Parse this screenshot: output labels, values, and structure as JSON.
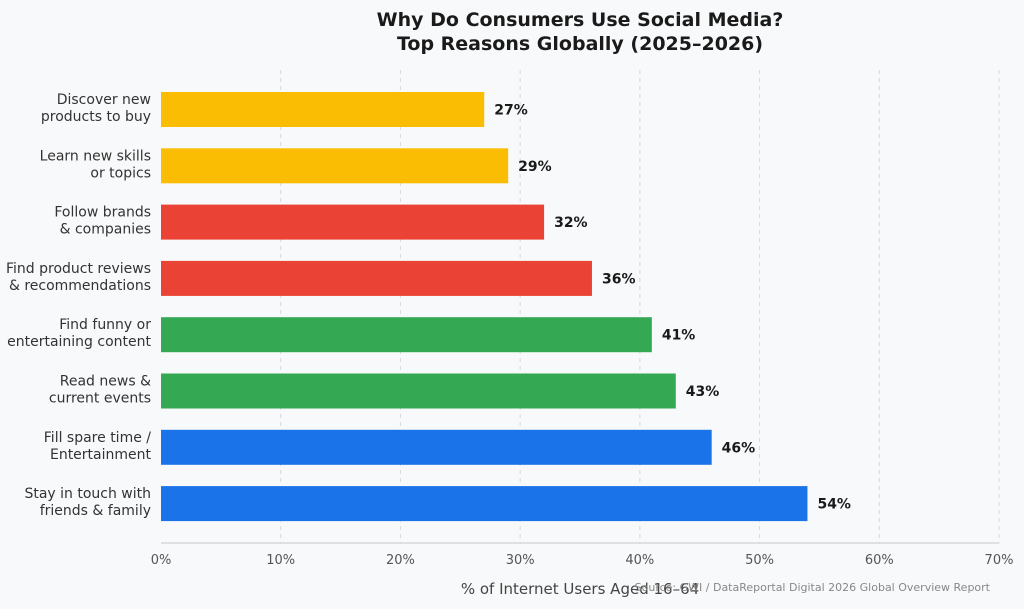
{
  "chart_data": {
    "type": "bar",
    "orientation": "horizontal",
    "title": [
      "Why Do Consumers Use Social Media?",
      "Top Reasons Globally (2025–2026)"
    ],
    "xlabel": "% of Internet Users Aged 16–64",
    "ylabel": "",
    "xlim": [
      0,
      70
    ],
    "x_ticks": [
      0,
      10,
      20,
      30,
      40,
      50,
      60,
      70
    ],
    "x_tick_labels": [
      "0%",
      "10%",
      "20%",
      "30%",
      "40%",
      "50%",
      "60%",
      "70%"
    ],
    "grid": "vertical dashed",
    "value_suffix": "%",
    "categories": [
      [
        "Discover new",
        "products to buy"
      ],
      [
        "Learn new skills",
        "or topics"
      ],
      [
        "Follow brands",
        "& companies"
      ],
      [
        "Find product reviews",
        "& recommendations"
      ],
      [
        "Find funny or",
        "entertaining content"
      ],
      [
        "Read news &",
        "current events"
      ],
      [
        "Fill spare time /",
        "Entertainment"
      ],
      [
        "Stay in touch with",
        "friends & family"
      ]
    ],
    "values": [
      27,
      29,
      32,
      36,
      41,
      43,
      46,
      54
    ],
    "colors": [
      "#fbbc04",
      "#fbbc04",
      "#ea4335",
      "#ea4335",
      "#34a853",
      "#34a853",
      "#1a73e8",
      "#1a73e8"
    ],
    "source": "Source: GWI / DataReportal Digital 2026 Global Overview Report"
  }
}
